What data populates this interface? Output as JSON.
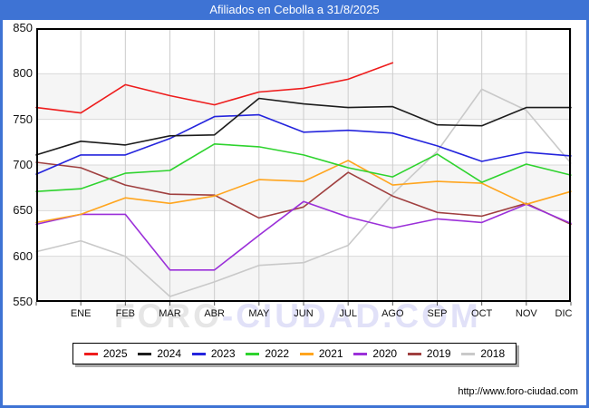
{
  "title": "Afiliados en Cebolla a 31/8/2025",
  "watermark": {
    "part1": "FORO",
    "part2": "-CIUDAD.COM"
  },
  "footer_url": "http://www.foro-ciudad.com",
  "chart_data": {
    "type": "line",
    "title": "Afiliados en Cebolla a 31/8/2025",
    "x_labels": [
      "ENE",
      "FEB",
      "MAR",
      "ABR",
      "MAY",
      "JUN",
      "JUL",
      "AGO",
      "SEP",
      "OCT",
      "NOV",
      "DIC"
    ],
    "y_ticks": [
      850,
      800,
      750,
      700,
      650,
      600,
      550
    ],
    "ylim": [
      550,
      850
    ],
    "grid": true,
    "band_fill": "#f5f5f5",
    "legend_position": "bottom",
    "series": [
      {
        "name": "2025",
        "color": "#ee1c1c",
        "start": 763,
        "values": [
          757,
          788,
          776,
          766,
          780,
          784,
          794,
          812
        ]
      },
      {
        "name": "2024",
        "color": "#1c1c1c",
        "start": 711,
        "values": [
          726,
          722,
          732,
          733,
          773,
          767,
          763,
          764,
          744,
          743,
          763,
          763
        ]
      },
      {
        "name": "2023",
        "color": "#2424dd",
        "start": 690,
        "values": [
          711,
          711,
          729,
          753,
          755,
          736,
          738,
          735,
          721,
          704,
          714,
          710
        ]
      },
      {
        "name": "2022",
        "color": "#2ed32e",
        "start": 671,
        "values": [
          674,
          691,
          694,
          723,
          720,
          711,
          697,
          687,
          712,
          681,
          701,
          689
        ]
      },
      {
        "name": "2021",
        "color": "#ffa51e",
        "start": 637,
        "values": [
          646,
          664,
          658,
          666,
          684,
          682,
          705,
          678,
          682,
          680,
          657,
          671
        ]
      },
      {
        "name": "2020",
        "color": "#9b30d9",
        "start": 635,
        "values": [
          646,
          646,
          585,
          585,
          623,
          660,
          643,
          631,
          641,
          637,
          657,
          636
        ]
      },
      {
        "name": "2019",
        "color": "#a04040",
        "start": 703,
        "values": [
          697,
          678,
          668,
          667,
          642,
          654,
          692,
          666,
          648,
          644,
          658,
          635
        ]
      },
      {
        "name": "2018",
        "color": "#c9c9c9",
        "start": 605,
        "values": [
          617,
          600,
          556,
          572,
          590,
          593,
          612,
          668,
          715,
          783,
          760,
          702
        ]
      }
    ]
  },
  "legend": {
    "items": [
      {
        "label": "2025",
        "color": "#ee1c1c"
      },
      {
        "label": "2024",
        "color": "#1c1c1c"
      },
      {
        "label": "2023",
        "color": "#2424dd"
      },
      {
        "label": "2022",
        "color": "#2ed32e"
      },
      {
        "label": "2021",
        "color": "#ffa51e"
      },
      {
        "label": "2020",
        "color": "#9b30d9"
      },
      {
        "label": "2019",
        "color": "#a04040"
      },
      {
        "label": "2018",
        "color": "#c9c9c9"
      }
    ]
  }
}
